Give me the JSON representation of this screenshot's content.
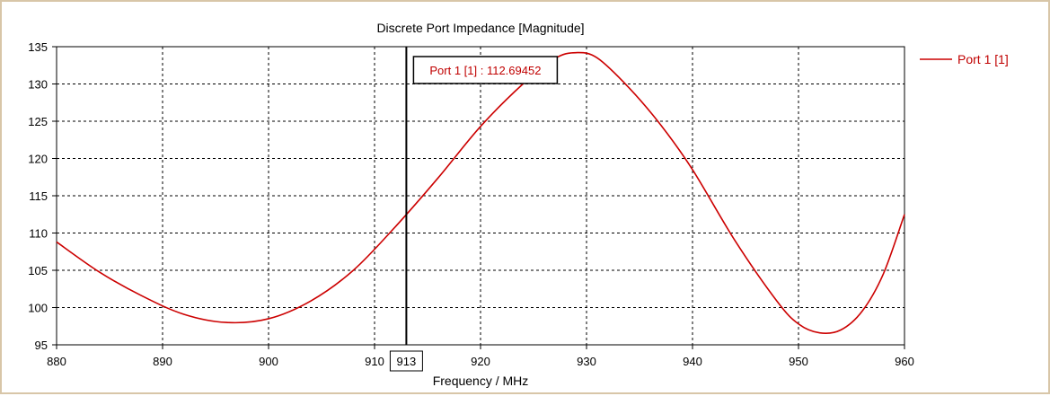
{
  "chart_data": {
    "type": "line",
    "title": "Discrete Port Impedance [Magnitude]",
    "xlabel": "Frequency / MHz",
    "ylabel": "",
    "xlim": [
      880,
      960
    ],
    "ylim": [
      95,
      135
    ],
    "xticks": [
      880,
      890,
      900,
      910,
      920,
      930,
      940,
      950,
      960
    ],
    "yticks": [
      95,
      100,
      105,
      110,
      115,
      120,
      125,
      130,
      135
    ],
    "grid": true,
    "legend_position": "right",
    "series": [
      {
        "name": "Port 1 [1]",
        "color": "#cc0000",
        "x": [
          880,
          884,
          888,
          892,
          896,
          900,
          904,
          908,
          912,
          916,
          920,
          924,
          927,
          929,
          931,
          934,
          937,
          940,
          944,
          948,
          950,
          952,
          954,
          956,
          958,
          960
        ],
        "y": [
          108.8,
          104.8,
          101.6,
          99.1,
          98.0,
          98.5,
          100.9,
          105.0,
          110.9,
          117.4,
          124.3,
          130.0,
          133.4,
          134.2,
          133.5,
          129.5,
          124.5,
          118.5,
          109.0,
          100.8,
          97.8,
          96.6,
          97.0,
          99.5,
          104.5,
          112.5
        ]
      }
    ],
    "marker": {
      "x": 913,
      "x_label": "913",
      "label": "Port 1 [1] : 112.69452"
    }
  }
}
